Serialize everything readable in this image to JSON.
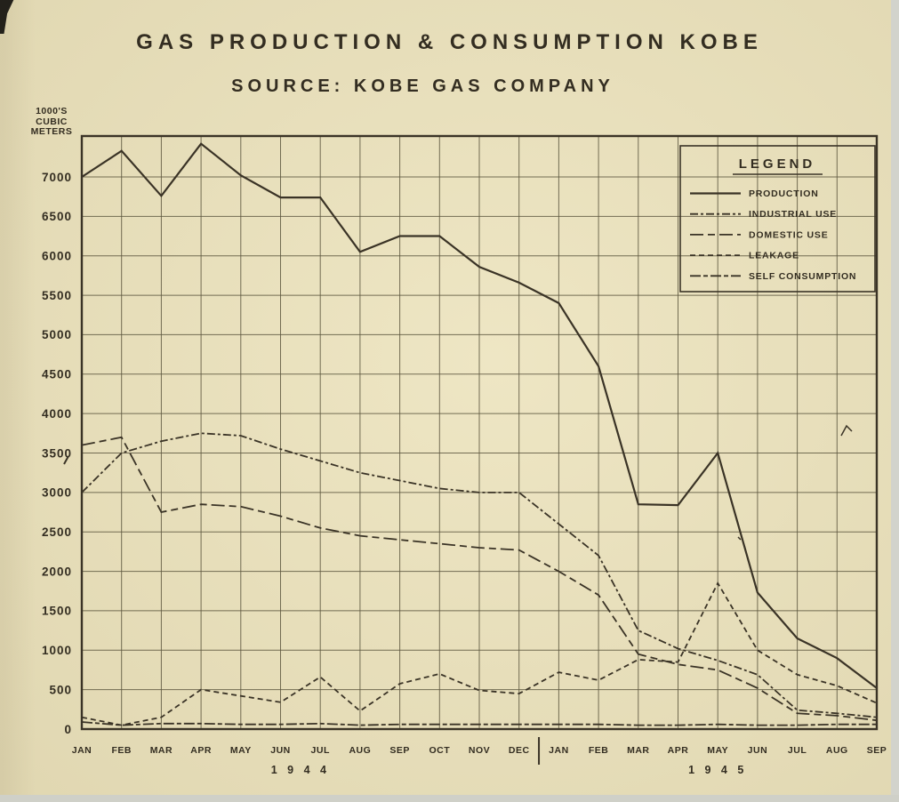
{
  "chart_data": {
    "type": "line",
    "title": "GAS PRODUCTION & CONSUMPTION KOBE",
    "subtitle": "SOURCE: KOBE GAS COMPANY",
    "ylabel": "1000'S CUBIC METERS",
    "ylabel_lines": [
      "1000'S",
      "CUBIC",
      "METERS"
    ],
    "ylim": [
      0,
      7500
    ],
    "ytick_step": 500,
    "yticks": [
      0,
      500,
      1000,
      1500,
      2000,
      2500,
      3000,
      3500,
      4000,
      4500,
      5000,
      5500,
      6000,
      6500,
      7000
    ],
    "grid": true,
    "x_categories": [
      "JAN",
      "FEB",
      "MAR",
      "APR",
      "MAY",
      "JUN",
      "JUL",
      "AUG",
      "SEP",
      "OCT",
      "NOV",
      "DEC",
      "JAN",
      "FEB",
      "MAR",
      "APR",
      "MAY",
      "JUN",
      "JUL",
      "AUG",
      "SEP"
    ],
    "year_groups": [
      {
        "label": "1 9 4 4",
        "months": 12
      },
      {
        "label": "1 9 4 5",
        "months": 9
      }
    ],
    "legend_title": "LEGEND",
    "legend_position": "top-right",
    "series": [
      {
        "name": "PRODUCTION",
        "dash": "solid",
        "values": [
          7000,
          7330,
          6760,
          7420,
          7020,
          6740,
          6740,
          6050,
          6250,
          6250,
          5860,
          5660,
          5400,
          4600,
          2850,
          2840,
          3500,
          1730,
          1150,
          900,
          520
        ]
      },
      {
        "name": "INDUSTRIAL USE",
        "dash": "dash-dot",
        "values": [
          3000,
          3500,
          3650,
          3750,
          3720,
          3550,
          3400,
          3250,
          3150,
          3050,
          3000,
          3000,
          2600,
          2200,
          1250,
          1020,
          870,
          690,
          240,
          200,
          150
        ]
      },
      {
        "name": "DOMESTIC USE",
        "dash": "long-dash",
        "values": [
          3600,
          3700,
          2750,
          2850,
          2820,
          2700,
          2550,
          2450,
          2400,
          2350,
          2300,
          2270,
          2000,
          1700,
          950,
          820,
          750,
          520,
          200,
          170,
          110
        ]
      },
      {
        "name": "LEAKAGE",
        "dash": "short-dash",
        "values": [
          150,
          50,
          150,
          500,
          420,
          340,
          660,
          230,
          575,
          700,
          490,
          450,
          720,
          620,
          880,
          850,
          1850,
          1000,
          690,
          550,
          330
        ]
      },
      {
        "name": "SELF CONSUMPTION",
        "dash": "dash-dot-long",
        "values": [
          90,
          50,
          70,
          70,
          60,
          60,
          70,
          50,
          60,
          60,
          60,
          60,
          60,
          60,
          50,
          50,
          60,
          50,
          50,
          60,
          60
        ]
      }
    ],
    "colors": {
      "ink": "#3a3326",
      "paper": "#ece3bd",
      "grid": "#5e5840"
    }
  }
}
